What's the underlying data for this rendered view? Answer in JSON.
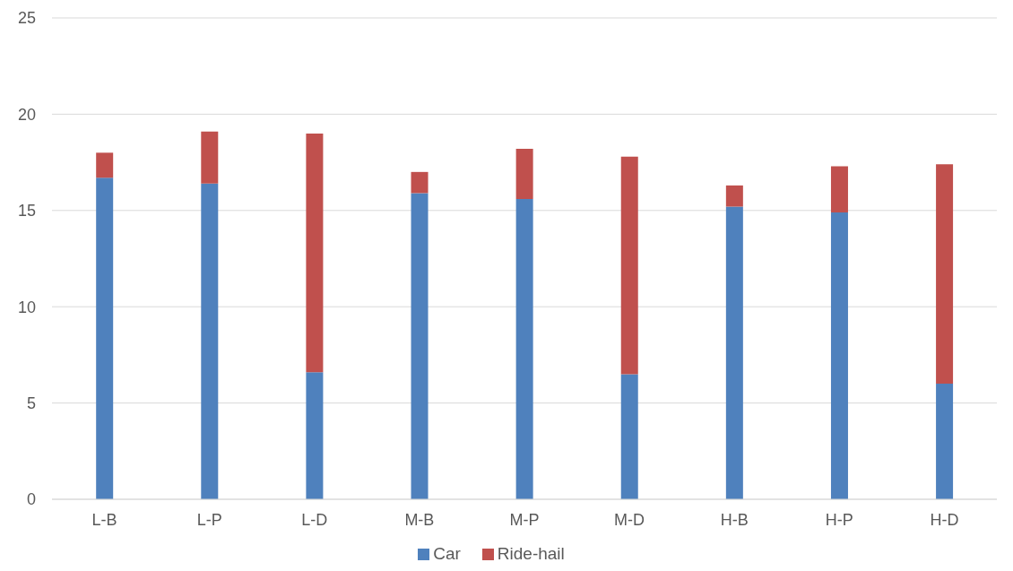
{
  "chart_data": {
    "type": "bar",
    "stacked": true,
    "categories": [
      "L-B",
      "L-P",
      "L-D",
      "M-B",
      "M-P",
      "M-D",
      "H-B",
      "H-P",
      "H-D"
    ],
    "series": [
      {
        "name": "Car",
        "color": "#4f81bd",
        "values": [
          16.7,
          16.4,
          6.6,
          15.9,
          15.6,
          6.5,
          15.2,
          14.9,
          6.0
        ]
      },
      {
        "name": "Ride-hail",
        "color": "#c0504d",
        "values": [
          1.3,
          2.7,
          12.4,
          1.1,
          2.6,
          11.3,
          1.1,
          2.4,
          11.4
        ]
      }
    ],
    "ylim": [
      0,
      25
    ],
    "yticks": [
      0,
      5,
      10,
      15,
      20,
      25
    ],
    "grid": "y",
    "legend": "bottom"
  }
}
